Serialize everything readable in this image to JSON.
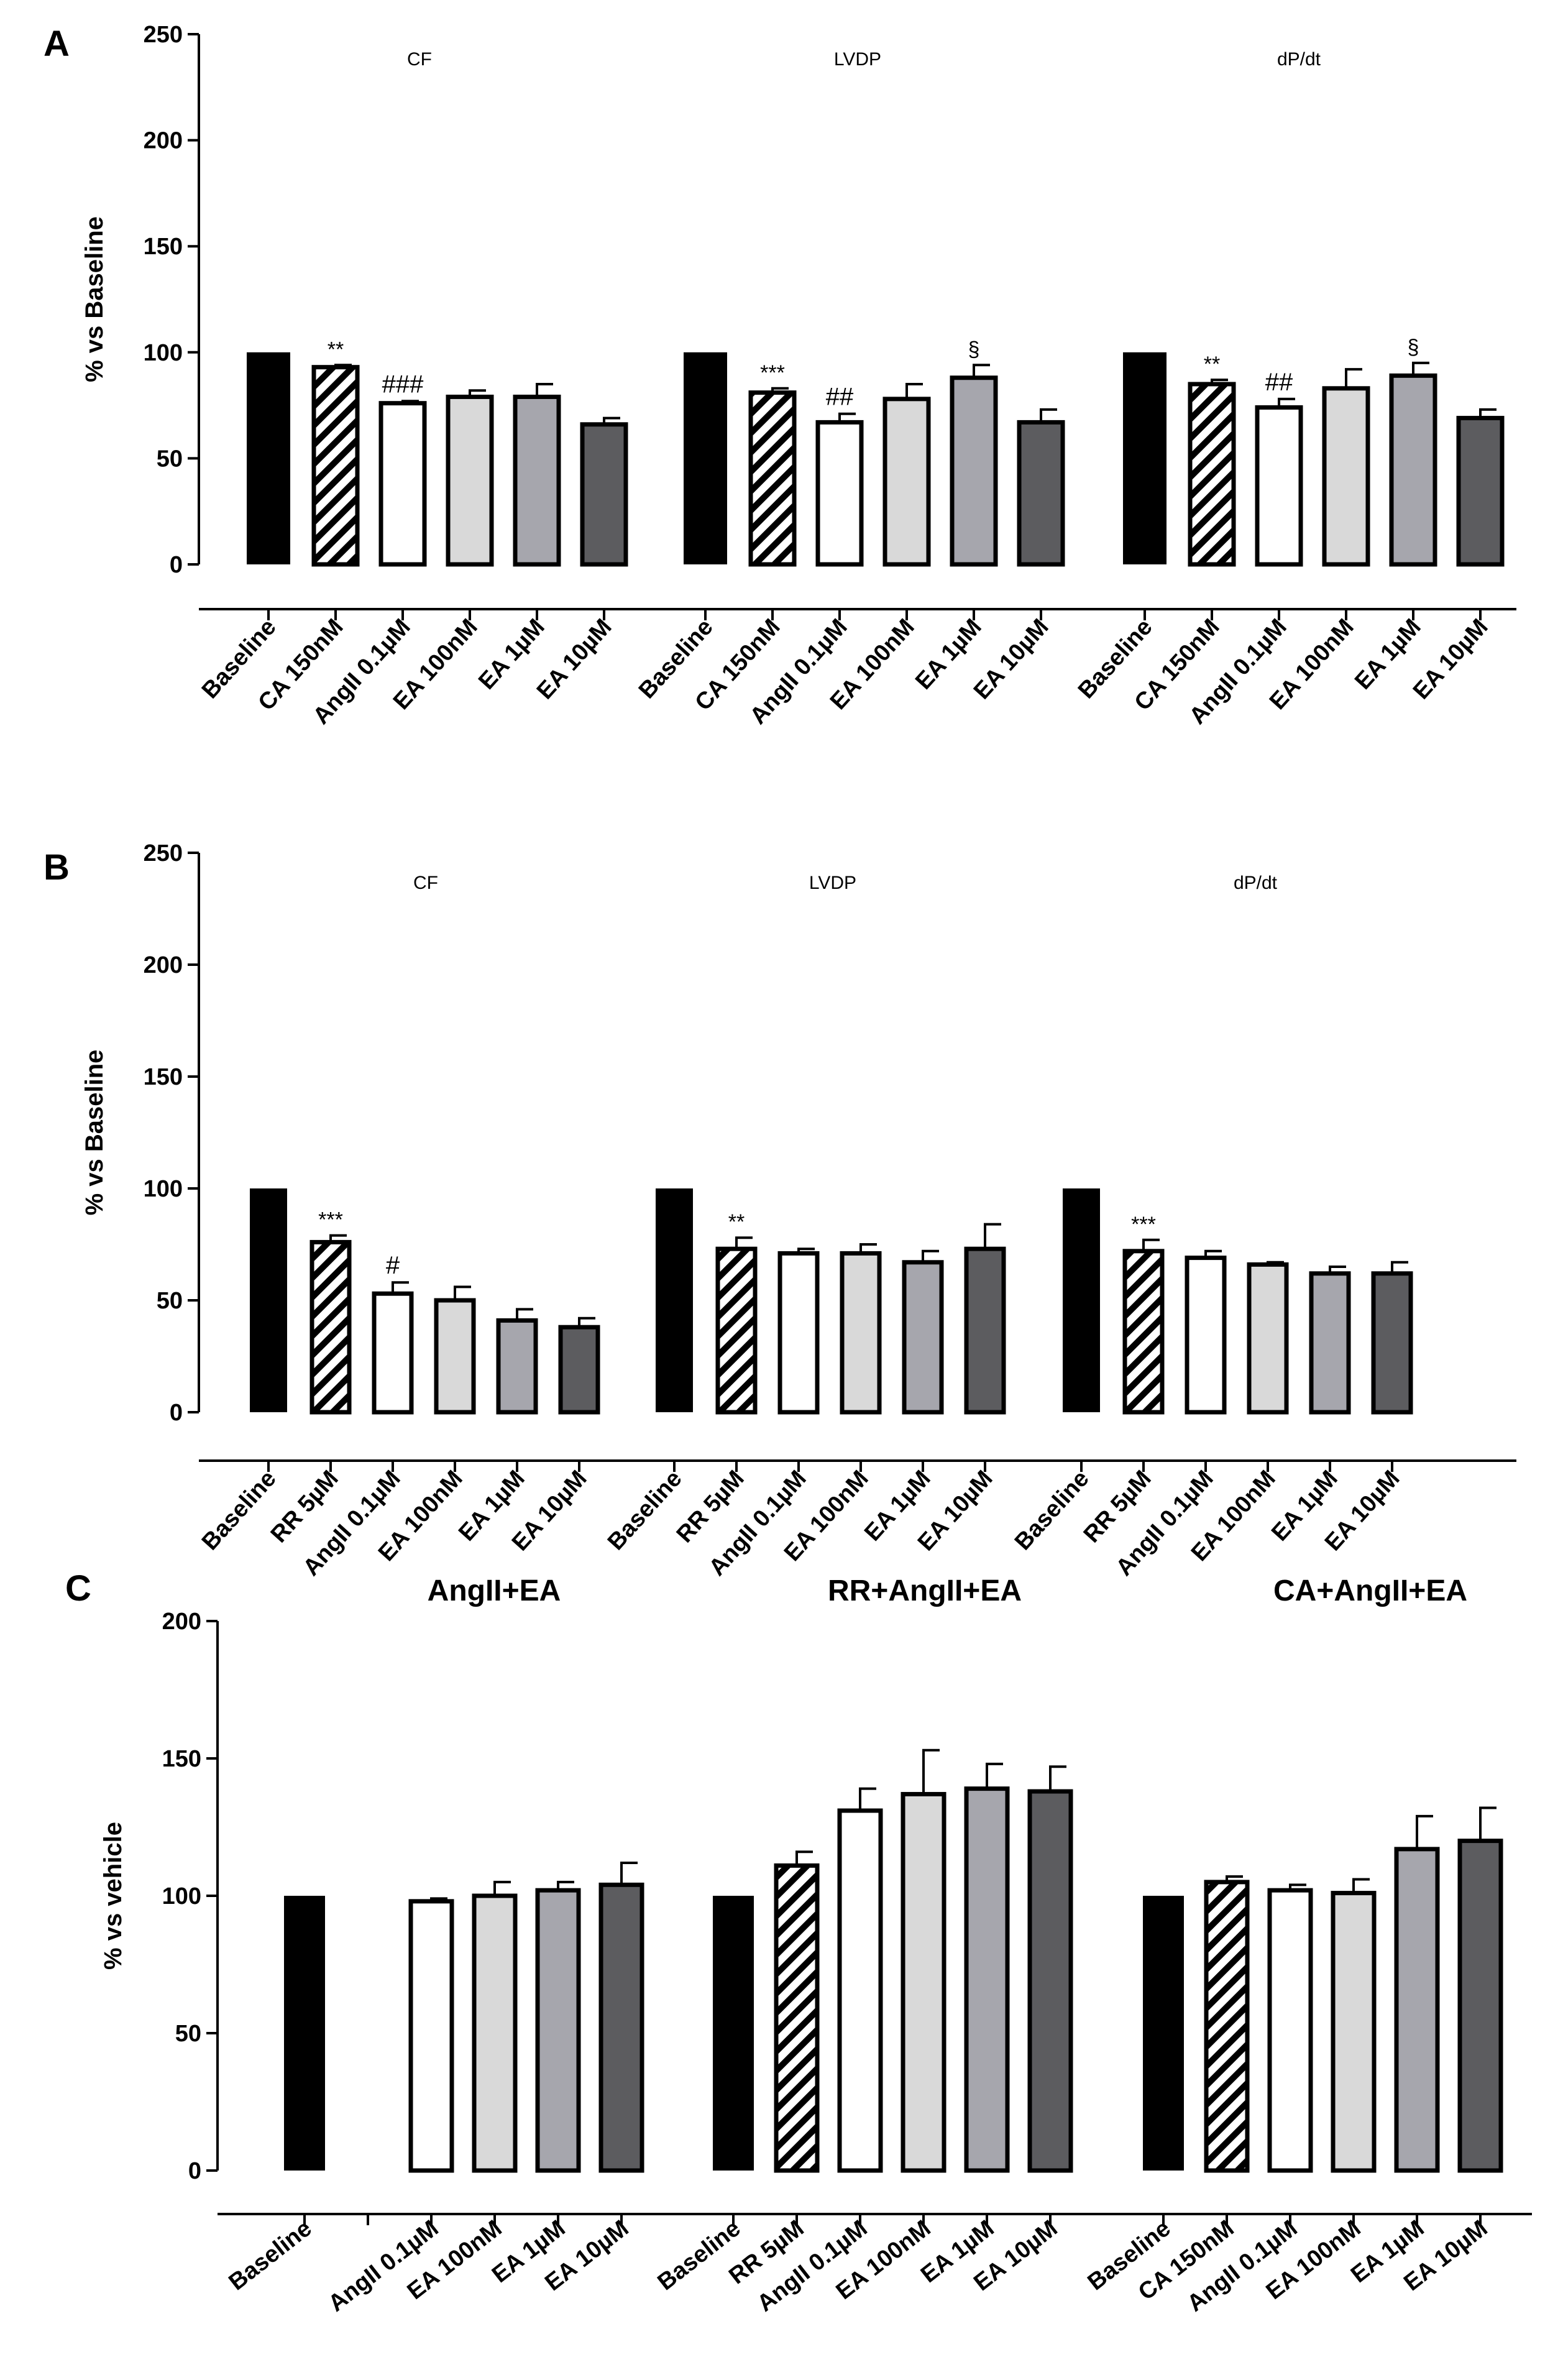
{
  "chart_data": [
    {
      "panel": "A",
      "type": "bar",
      "ylabel": "% vs Baseline",
      "ylim": [
        0,
        250
      ],
      "yticks": [
        0,
        50,
        100,
        150,
        200,
        250
      ],
      "groups": [
        {
          "title": "CF",
          "bars": [
            {
              "label": "Baseline",
              "value": 100,
              "err": 0,
              "fill": "black",
              "sig": ""
            },
            {
              "label": "CA 150nM",
              "value": 93,
              "err": 1,
              "fill": "hatch",
              "sig": "**"
            },
            {
              "label": "AngII 0.1µM",
              "value": 76,
              "err": 1,
              "fill": "white",
              "sig": "###"
            },
            {
              "label": "EA 100nM",
              "value": 79,
              "err": 3,
              "fill": "lightgray",
              "sig": ""
            },
            {
              "label": "EA 1µM",
              "value": 79,
              "err": 6,
              "fill": "midgray",
              "sig": ""
            },
            {
              "label": "EA 10µM",
              "value": 66,
              "err": 3,
              "fill": "darkgray",
              "sig": ""
            }
          ]
        },
        {
          "title": "LVDP",
          "bars": [
            {
              "label": "Baseline",
              "value": 100,
              "err": 0,
              "fill": "black",
              "sig": ""
            },
            {
              "label": "CA 150nM",
              "value": 81,
              "err": 2,
              "fill": "hatch",
              "sig": "***"
            },
            {
              "label": "AngII 0.1µM",
              "value": 67,
              "err": 4,
              "fill": "white",
              "sig": "##"
            },
            {
              "label": "EA 100nM",
              "value": 78,
              "err": 7,
              "fill": "lightgray",
              "sig": ""
            },
            {
              "label": "EA 1µM",
              "value": 88,
              "err": 6,
              "fill": "midgray",
              "sig": "§"
            },
            {
              "label": "EA 10µM",
              "value": 67,
              "err": 6,
              "fill": "darkgray",
              "sig": ""
            }
          ]
        },
        {
          "title": "dP/dt",
          "bars": [
            {
              "label": "Baseline",
              "value": 100,
              "err": 0,
              "fill": "black",
              "sig": ""
            },
            {
              "label": "CA 150nM",
              "value": 85,
              "err": 2,
              "fill": "hatch",
              "sig": "**"
            },
            {
              "label": "AngII 0.1µM",
              "value": 74,
              "err": 4,
              "fill": "white",
              "sig": "##"
            },
            {
              "label": "EA 100nM",
              "value": 83,
              "err": 9,
              "fill": "lightgray",
              "sig": ""
            },
            {
              "label": "EA 1µM",
              "value": 89,
              "err": 6,
              "fill": "midgray",
              "sig": "§"
            },
            {
              "label": "EA 10µM",
              "value": 69,
              "err": 4,
              "fill": "darkgray",
              "sig": ""
            }
          ]
        }
      ]
    },
    {
      "panel": "B",
      "type": "bar",
      "ylabel": "% vs Baseline",
      "ylim": [
        0,
        250
      ],
      "yticks": [
        0,
        50,
        100,
        150,
        200,
        250
      ],
      "groups": [
        {
          "title": "CF",
          "bars": [
            {
              "label": "Baseline",
              "value": 100,
              "err": 0,
              "fill": "black",
              "sig": ""
            },
            {
              "label": "RR 5µM",
              "value": 76,
              "err": 3,
              "fill": "hatch",
              "sig": "***"
            },
            {
              "label": "AngII 0.1µM",
              "value": 53,
              "err": 5,
              "fill": "white",
              "sig": "#"
            },
            {
              "label": "EA 100nM",
              "value": 50,
              "err": 6,
              "fill": "lightgray",
              "sig": ""
            },
            {
              "label": "EA 1µM",
              "value": 41,
              "err": 5,
              "fill": "midgray",
              "sig": ""
            },
            {
              "label": "EA 10µM",
              "value": 38,
              "err": 4,
              "fill": "darkgray",
              "sig": ""
            }
          ]
        },
        {
          "title": "LVDP",
          "bars": [
            {
              "label": "Baseline",
              "value": 100,
              "err": 0,
              "fill": "black",
              "sig": ""
            },
            {
              "label": "RR 5µM",
              "value": 73,
              "err": 5,
              "fill": "hatch",
              "sig": "**"
            },
            {
              "label": "AngII 0.1µM",
              "value": 71,
              "err": 2,
              "fill": "white",
              "sig": ""
            },
            {
              "label": "EA 100nM",
              "value": 71,
              "err": 4,
              "fill": "lightgray",
              "sig": ""
            },
            {
              "label": "EA 1µM",
              "value": 67,
              "err": 5,
              "fill": "midgray",
              "sig": ""
            },
            {
              "label": "EA 10µM",
              "value": 73,
              "err": 11,
              "fill": "darkgray",
              "sig": ""
            }
          ]
        },
        {
          "title": "dP/dt",
          "bars": [
            {
              "label": "Baseline",
              "value": 100,
              "err": 0,
              "fill": "black",
              "sig": ""
            },
            {
              "label": "RR 5µM",
              "value": 72,
              "err": 5,
              "fill": "hatch",
              "sig": "***"
            },
            {
              "label": "AngII 0.1µM",
              "value": 69,
              "err": 3,
              "fill": "white",
              "sig": ""
            },
            {
              "label": "EA 100nM",
              "value": 66,
              "err": 1,
              "fill": "lightgray",
              "sig": ""
            },
            {
              "label": "EA 1µM",
              "value": 62,
              "err": 3,
              "fill": "midgray",
              "sig": ""
            },
            {
              "label": "EA 10µM",
              "value": 62,
              "err": 5,
              "fill": "darkgray",
              "sig": ""
            }
          ]
        }
      ]
    },
    {
      "panel": "C",
      "type": "bar",
      "ylabel": "% vs vehicle",
      "ylim": [
        0,
        200
      ],
      "yticks": [
        0,
        50,
        100,
        150,
        200
      ],
      "groups": [
        {
          "title": "AngII+EA",
          "bars": [
            {
              "label": "Baseline",
              "value": 100,
              "err": 0,
              "fill": "black",
              "sig": ""
            },
            {
              "label": "",
              "value": null,
              "err": 0,
              "fill": "none",
              "sig": ""
            },
            {
              "label": "AngII 0.1µM",
              "value": 98,
              "err": 1,
              "fill": "white",
              "sig": ""
            },
            {
              "label": "EA 100nM",
              "value": 100,
              "err": 5,
              "fill": "lightgray",
              "sig": ""
            },
            {
              "label": "EA 1µM",
              "value": 102,
              "err": 3,
              "fill": "midgray",
              "sig": ""
            },
            {
              "label": "EA 10µM",
              "value": 104,
              "err": 8,
              "fill": "darkgray",
              "sig": ""
            }
          ]
        },
        {
          "title": "RR+AngII+EA",
          "bars": [
            {
              "label": "Baseline",
              "value": 100,
              "err": 0,
              "fill": "black",
              "sig": ""
            },
            {
              "label": "RR 5µM",
              "value": 111,
              "err": 5,
              "fill": "hatch",
              "sig": ""
            },
            {
              "label": "AngII 0.1µM",
              "value": 131,
              "err": 8,
              "fill": "white",
              "sig": ""
            },
            {
              "label": "EA 100nM",
              "value": 137,
              "err": 16,
              "fill": "lightgray",
              "sig": ""
            },
            {
              "label": "EA 1µM",
              "value": 139,
              "err": 9,
              "fill": "midgray",
              "sig": ""
            },
            {
              "label": "EA 10µM",
              "value": 138,
              "err": 9,
              "fill": "darkgray",
              "sig": ""
            }
          ]
        },
        {
          "title": "CA+AngII+EA",
          "bars": [
            {
              "label": "Baseline",
              "value": 100,
              "err": 0,
              "fill": "black",
              "sig": ""
            },
            {
              "label": "CA 150nM",
              "value": 105,
              "err": 2,
              "fill": "hatch",
              "sig": ""
            },
            {
              "label": "AngII 0.1µM",
              "value": 102,
              "err": 2,
              "fill": "white",
              "sig": ""
            },
            {
              "label": "EA 100nM",
              "value": 101,
              "err": 5,
              "fill": "lightgray",
              "sig": ""
            },
            {
              "label": "EA 1µM",
              "value": 117,
              "err": 12,
              "fill": "midgray",
              "sig": ""
            },
            {
              "label": "EA 10µM",
              "value": 120,
              "err": 12,
              "fill": "darkgray",
              "sig": ""
            }
          ]
        }
      ]
    }
  ],
  "colors": {
    "black": "#000000",
    "white": "#ffffff",
    "lightgray": "#d9d9d9",
    "midgray": "#a6a6ad",
    "darkgray": "#5c5c5f",
    "hatch_stripe": "#000000"
  }
}
